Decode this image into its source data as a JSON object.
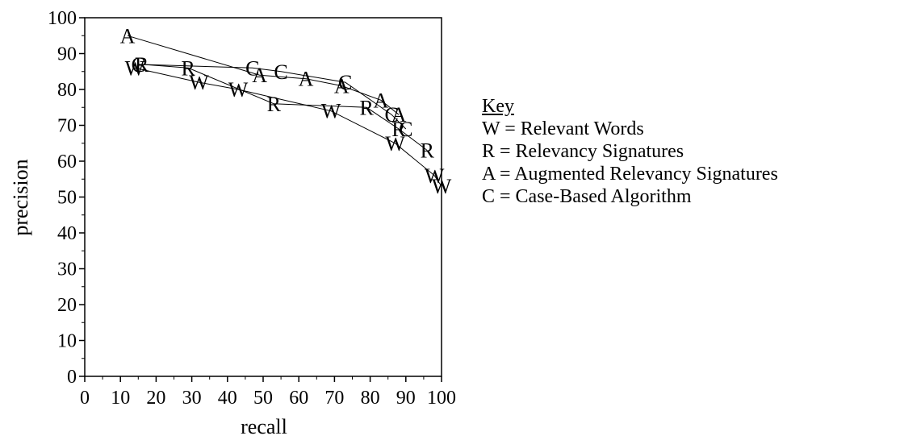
{
  "chart_data": {
    "type": "scatter",
    "xlabel": "recall",
    "ylabel": "precision",
    "xlim": [
      0,
      100
    ],
    "ylim": [
      0,
      100
    ],
    "xticks": [
      0,
      10,
      20,
      30,
      40,
      50,
      60,
      70,
      80,
      90,
      100
    ],
    "yticks": [
      0,
      10,
      20,
      30,
      40,
      50,
      60,
      70,
      80,
      90,
      100
    ],
    "grid": false,
    "series": [
      {
        "name": "Relevant Words",
        "marker": "W",
        "points": [
          {
            "x": 14,
            "y": 86
          },
          {
            "x": 32,
            "y": 82
          },
          {
            "x": 43,
            "y": 80
          },
          {
            "x": 69,
            "y": 74
          },
          {
            "x": 87,
            "y": 65
          },
          {
            "x": 98,
            "y": 56
          },
          {
            "x": 100,
            "y": 53
          }
        ]
      },
      {
        "name": "Relevancy Signatures",
        "marker": "R",
        "points": [
          {
            "x": 16,
            "y": 87
          },
          {
            "x": 29,
            "y": 86
          },
          {
            "x": 53,
            "y": 76
          },
          {
            "x": 79,
            "y": 75
          },
          {
            "x": 88,
            "y": 69
          },
          {
            "x": 96,
            "y": 63
          }
        ]
      },
      {
        "name": "Augmented Relevancy Signatures",
        "marker": "A",
        "points": [
          {
            "x": 12,
            "y": 95
          },
          {
            "x": 49,
            "y": 84
          },
          {
            "x": 62,
            "y": 83
          },
          {
            "x": 72,
            "y": 81
          },
          {
            "x": 83,
            "y": 77
          },
          {
            "x": 88,
            "y": 73
          }
        ]
      },
      {
        "name": "Case-Based Algorithm",
        "marker": "C",
        "points": [
          {
            "x": 15,
            "y": 87
          },
          {
            "x": 47,
            "y": 86
          },
          {
            "x": 55,
            "y": 85
          },
          {
            "x": 73,
            "y": 82
          },
          {
            "x": 86,
            "y": 73
          },
          {
            "x": 90,
            "y": 69
          }
        ]
      }
    ]
  },
  "key": {
    "title": "Key",
    "entries": [
      "W = Relevant Words",
      "R = Relevancy Signatures",
      "A = Augmented Relevancy Signatures",
      "C = Case-Based Algorithm"
    ]
  }
}
